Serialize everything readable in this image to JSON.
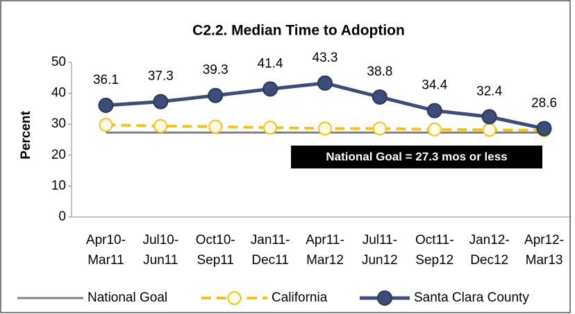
{
  "chart_data": {
    "type": "line",
    "title": "C2.2. Median Time to Adoption",
    "y_label": "Percent",
    "categories": [
      "Apr10-Mar11",
      "Jul10-Jun11",
      "Oct10-Sep11",
      "Jan11-Dec11",
      "Apr11-Mar12",
      "Jul11-Jun12",
      "Oct11-Sep12",
      "Jan12-Dec12",
      "Apr12-Mar13"
    ],
    "series": [
      {
        "name": "National Goal",
        "color": "#808080",
        "values": [
          27.3,
          27.3,
          27.3,
          27.3,
          27.3,
          27.3,
          27.3,
          27.3,
          27.3
        ]
      },
      {
        "name": "California",
        "color": "#f5c21b",
        "values": [
          29.8,
          29.4,
          29.2,
          28.9,
          28.6,
          28.6,
          28.3,
          28.2,
          28.0
        ]
      },
      {
        "name": "Santa Clara County",
        "color": "#3e4c7a",
        "values": [
          36.1,
          37.3,
          39.3,
          41.4,
          43.3,
          38.8,
          34.4,
          32.4,
          28.6
        ]
      }
    ],
    "annotation": "National Goal =  27.3 mos or less",
    "ylim": [
      0,
      50
    ],
    "yticks": [
      0,
      10,
      20,
      30,
      40,
      50
    ]
  }
}
